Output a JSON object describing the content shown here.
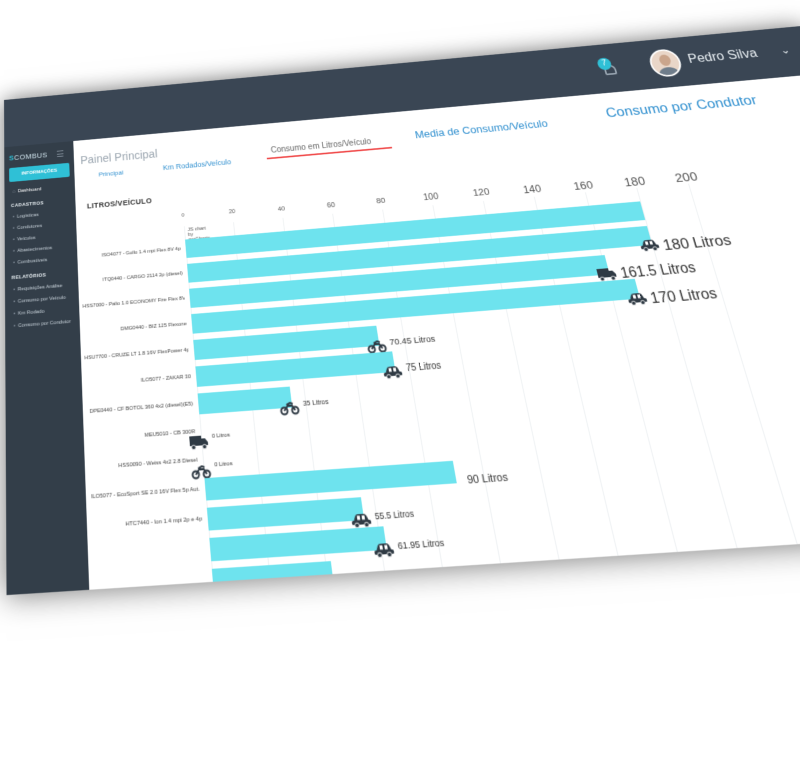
{
  "user": {
    "name": "Pedro Silva",
    "notifications": "7"
  },
  "sidebar": {
    "brand_prefix": "S",
    "brand_name": "COMBUS",
    "primary_button": "INFORMAÇÕES",
    "dashboard": "Dashboard",
    "section_cadastros": "CADASTROS",
    "cadastros": [
      "Logísticas",
      "Condutores",
      "Veículos",
      "Abastecimentos",
      "Combustíveis"
    ],
    "section_relatorios": "RELATÓRIOS",
    "relatorios": [
      "Requisições Análise",
      "Consumo por Veículo",
      "Km Rodado",
      "Consumo por Condutor"
    ]
  },
  "header": {
    "panel_title": "Painel Principal",
    "tabs": [
      {
        "label": "Principal"
      },
      {
        "label": "Km Rodados/Veículo"
      },
      {
        "label": "Consumo em Litros/Veículo"
      },
      {
        "label": "Media de Consumo/Veículo"
      },
      {
        "label": "Consumo por Condutor"
      }
    ]
  },
  "section_title": "LITROS/VEÍCULO",
  "chart_credit": "JS chart by amCharts",
  "chart_data": {
    "type": "bar",
    "orientation": "horizontal",
    "xlim": [
      0,
      200
    ],
    "ticks": [
      0,
      20,
      40,
      60,
      80,
      100,
      120,
      140,
      160,
      180,
      200
    ],
    "color": "#6ee3ee",
    "categories": [
      "ISO4077 - Gollo 1.4 mpi Flex 8V 4p",
      "ITQ0440 - CARGO 2114 2p (diesel)",
      "HSS7000 - Palio 1.0 ECONOMY Fire Flex 8V 2p",
      "DMG0440 - BIZ 125 Flexone",
      "HSU7700 - CRUZE LT 1.8 16V FlexPower 4p Aut.",
      "ILO5077 - ZAKAR 30",
      "DPE0440 - CF BOTOL 360 4x2 (diesel)(E5)",
      "MEU5010 - CB 300R",
      "HSS0090 - Weiss 4x2 2.8 Diesel",
      "ILO5077 - EcoSport SE 2.0 16V Flex 5p Aut.",
      "HTC7440 - Ion 1.4 mpi 2p e 4p",
      "",
      ""
    ],
    "values": [
      180,
      180,
      161.5,
      170,
      70.45,
      75,
      35,
      0,
      0,
      90,
      55.5,
      61.95,
      42
    ],
    "labels": [
      "",
      "180 Litros",
      "161.5 Litros",
      "170 Litros",
      "70.45 Litros",
      "75 Litros",
      "35 Litros",
      "0 Litros",
      "0 Litros",
      "90 Litros",
      "55.5 Litros",
      "61.95 Litros",
      ""
    ],
    "icons": [
      "none",
      "car",
      "truck",
      "car",
      "moto",
      "car",
      "moto",
      "truck",
      "moto",
      "none",
      "car",
      "car",
      "none"
    ]
  }
}
